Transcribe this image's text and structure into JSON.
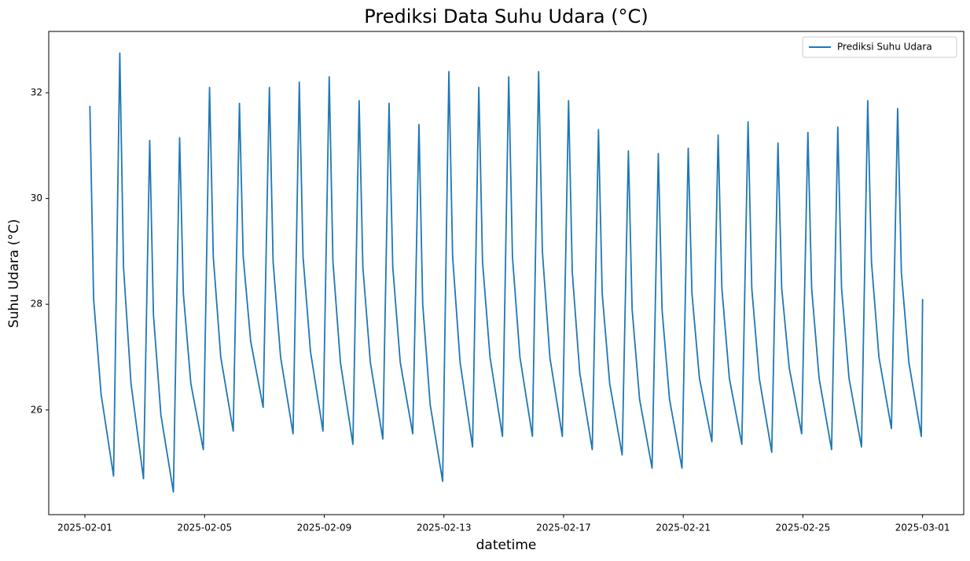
{
  "chart_data": {
    "type": "line",
    "title": "Prediksi Data Suhu Udara (°C)",
    "x_label": "datetime",
    "y_label": "Suhu Udara (°C)",
    "legend": "upper right",
    "x": [
      "2025-02-01T04:00",
      "2025-02-01T07:00",
      "2025-02-01T13:00",
      "2025-02-01T23:00",
      "2025-02-02T04:00",
      "2025-02-02T07:00",
      "2025-02-02T13:00",
      "2025-02-02T23:00",
      "2025-02-03T04:00",
      "2025-02-03T07:00",
      "2025-02-03T13:00",
      "2025-02-03T23:00",
      "2025-02-04T04:00",
      "2025-02-04T07:00",
      "2025-02-04T13:00",
      "2025-02-04T23:00",
      "2025-02-05T04:00",
      "2025-02-05T07:00",
      "2025-02-05T13:00",
      "2025-02-05T23:00",
      "2025-02-06T04:00",
      "2025-02-06T07:00",
      "2025-02-06T13:00",
      "2025-02-06T23:00",
      "2025-02-07T04:00",
      "2025-02-07T07:00",
      "2025-02-07T13:00",
      "2025-02-07T23:00",
      "2025-02-08T04:00",
      "2025-02-08T07:00",
      "2025-02-08T13:00",
      "2025-02-08T23:00",
      "2025-02-09T04:00",
      "2025-02-09T07:00",
      "2025-02-09T13:00",
      "2025-02-09T23:00",
      "2025-02-10T04:00",
      "2025-02-10T07:00",
      "2025-02-10T13:00",
      "2025-02-10T23:00",
      "2025-02-11T04:00",
      "2025-02-11T07:00",
      "2025-02-11T13:00",
      "2025-02-11T23:00",
      "2025-02-12T04:00",
      "2025-02-12T07:00",
      "2025-02-12T13:00",
      "2025-02-12T23:00",
      "2025-02-13T04:00",
      "2025-02-13T07:00",
      "2025-02-13T13:00",
      "2025-02-13T23:00",
      "2025-02-14T04:00",
      "2025-02-14T07:00",
      "2025-02-14T13:00",
      "2025-02-14T23:00",
      "2025-02-15T04:00",
      "2025-02-15T07:00",
      "2025-02-15T13:00",
      "2025-02-15T23:00",
      "2025-02-16T04:00",
      "2025-02-16T07:00",
      "2025-02-16T13:00",
      "2025-02-16T23:00",
      "2025-02-17T04:00",
      "2025-02-17T07:00",
      "2025-02-17T13:00",
      "2025-02-17T23:00",
      "2025-02-18T04:00",
      "2025-02-18T07:00",
      "2025-02-18T13:00",
      "2025-02-18T23:00",
      "2025-02-19T04:00",
      "2025-02-19T07:00",
      "2025-02-19T13:00",
      "2025-02-19T23:00",
      "2025-02-20T04:00",
      "2025-02-20T07:00",
      "2025-02-20T13:00",
      "2025-02-20T23:00",
      "2025-02-21T04:00",
      "2025-02-21T07:00",
      "2025-02-21T13:00",
      "2025-02-21T23:00",
      "2025-02-22T04:00",
      "2025-02-22T07:00",
      "2025-02-22T13:00",
      "2025-02-22T23:00",
      "2025-02-23T04:00",
      "2025-02-23T07:00",
      "2025-02-23T13:00",
      "2025-02-23T23:00",
      "2025-02-24T04:00",
      "2025-02-24T07:00",
      "2025-02-24T13:00",
      "2025-02-24T23:00",
      "2025-02-25T04:00",
      "2025-02-25T07:00",
      "2025-02-25T13:00",
      "2025-02-25T23:00",
      "2025-02-26T04:00",
      "2025-02-26T07:00",
      "2025-02-26T13:00",
      "2025-02-26T23:00",
      "2025-02-27T04:00",
      "2025-02-27T07:00",
      "2025-02-27T13:00",
      "2025-02-27T23:00",
      "2025-02-28T04:00",
      "2025-02-28T07:00",
      "2025-02-28T13:00",
      "2025-02-28T23:00",
      "2025-03-01T00:00"
    ],
    "series": [
      {
        "name": "Prediksi Suhu Udara",
        "color": "#1f77b4",
        "values": [
          31.75,
          28.1,
          26.3,
          24.75,
          32.75,
          28.7,
          26.5,
          24.7,
          31.1,
          27.8,
          25.9,
          24.45,
          31.15,
          28.2,
          26.5,
          25.25,
          32.1,
          28.9,
          27.0,
          25.6,
          31.8,
          28.9,
          27.3,
          26.05,
          32.1,
          28.8,
          27.0,
          25.55,
          32.2,
          28.9,
          27.1,
          25.6,
          32.3,
          28.8,
          26.9,
          25.35,
          31.85,
          28.7,
          26.9,
          25.45,
          31.8,
          28.7,
          26.9,
          25.55,
          31.4,
          28.0,
          26.1,
          24.65,
          32.4,
          28.9,
          26.9,
          25.3,
          32.1,
          28.8,
          27.0,
          25.5,
          32.3,
          28.9,
          27.0,
          25.5,
          32.4,
          29.0,
          27.0,
          25.5,
          31.85,
          28.6,
          26.7,
          25.25,
          31.3,
          28.2,
          26.5,
          25.15,
          30.9,
          27.9,
          26.2,
          24.9,
          30.85,
          27.9,
          26.2,
          24.9,
          30.95,
          28.2,
          26.6,
          25.4,
          31.2,
          28.3,
          26.6,
          25.35,
          31.45,
          28.3,
          26.6,
          25.2,
          31.05,
          28.3,
          26.8,
          25.55,
          31.25,
          28.3,
          26.6,
          25.25,
          31.35,
          28.3,
          26.6,
          25.3,
          31.85,
          28.8,
          27.0,
          25.65,
          31.7,
          28.6,
          26.9,
          25.5,
          28.1
        ]
      }
    ],
    "xlim": [
      "2025-01-30T19:00",
      "2025-03-02T09:00"
    ],
    "xticks": [
      "2025-02-01",
      "2025-02-05",
      "2025-02-09",
      "2025-02-13",
      "2025-02-17",
      "2025-02-21",
      "2025-02-25",
      "2025-03-01"
    ],
    "ylim": [
      24.02,
      33.16
    ],
    "yticks": [
      26,
      28,
      30,
      32
    ],
    "grid": false
  }
}
